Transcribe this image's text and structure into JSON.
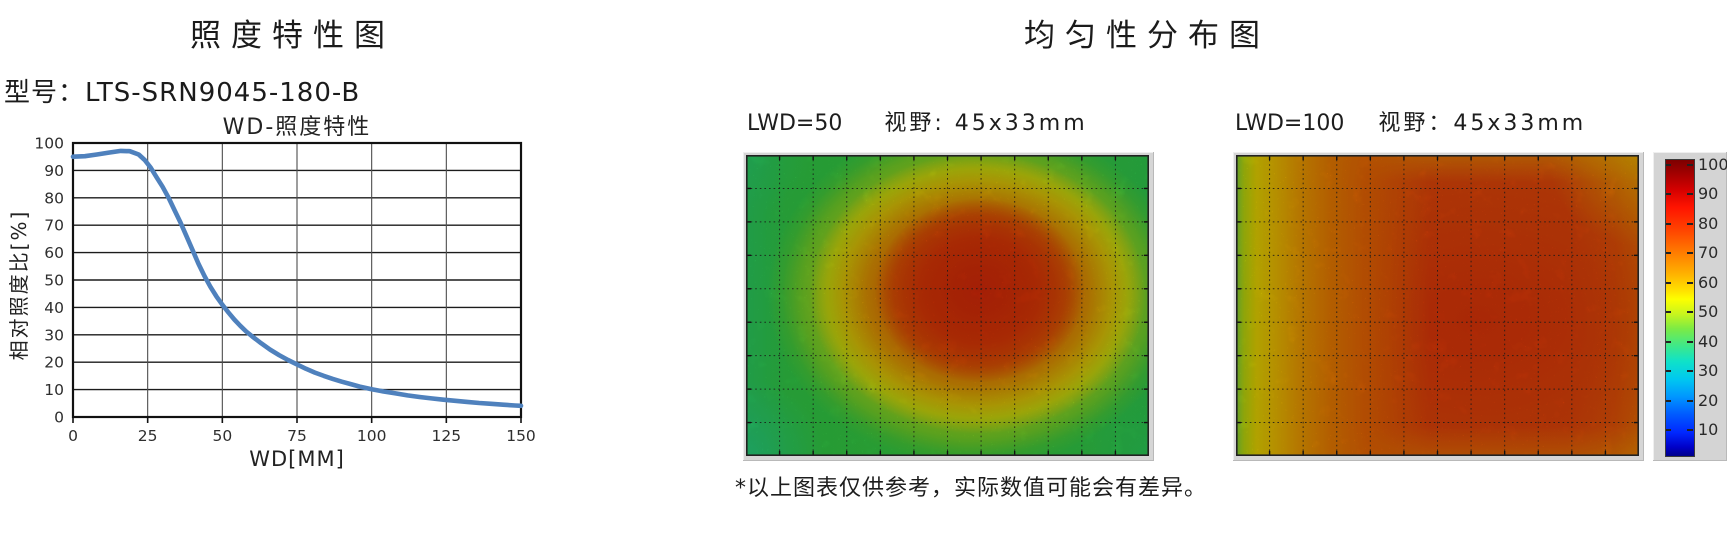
{
  "left_panel": {
    "title": "照度特性图",
    "model_label": "型号：LTS-SRN9045-180-B",
    "chart_title": "WD-照度特性",
    "x_axis_label": "WD[MM]",
    "y_axis_label": "相对照度比[%]"
  },
  "right_panel": {
    "title": "均匀性分布图",
    "heatmap1": {
      "lwd_label": "LWD=50",
      "fov_label": "视野: 45x33mm"
    },
    "heatmap2": {
      "lwd_label": "LWD=100",
      "fov_label": "视野：45x33mm"
    },
    "note": "*以上图表仅供参考，实际数值可能会有差异。"
  },
  "colorbar": {
    "ticks": [
      100,
      90,
      80,
      70,
      60,
      50,
      40,
      30,
      20,
      10
    ],
    "colormap": "jet",
    "panel_color": "#d4d4d4"
  },
  "colors": {
    "curve": "#4f81bd",
    "frame_gray": "#d6d6d6",
    "grid_dark": "#1c1c1c"
  },
  "chart_data": [
    {
      "type": "line",
      "title": "WD-照度特性",
      "xlabel": "WD[MM]",
      "ylabel": "相对照度比[%]",
      "xlim": [
        0,
        150
      ],
      "ylim": [
        0,
        100
      ],
      "x_ticks": [
        0,
        25,
        50,
        75,
        100,
        125,
        150
      ],
      "y_ticks": [
        0,
        10,
        20,
        30,
        40,
        50,
        60,
        70,
        80,
        90,
        100
      ],
      "grid": true,
      "legend": "none",
      "line_color": "#4f81bd",
      "points": [
        [
          0,
          95
        ],
        [
          4,
          95.2
        ],
        [
          8,
          95.8
        ],
        [
          12,
          96.5
        ],
        [
          16,
          97.1
        ],
        [
          19,
          97.0
        ],
        [
          22,
          95.8
        ],
        [
          24,
          93.8
        ],
        [
          26,
          91
        ],
        [
          28,
          87.5
        ],
        [
          30,
          84
        ],
        [
          32,
          80
        ],
        [
          34,
          75.5
        ],
        [
          36,
          71
        ],
        [
          38,
          66
        ],
        [
          40,
          61
        ],
        [
          42,
          56
        ],
        [
          44,
          51.5
        ],
        [
          46,
          47.5
        ],
        [
          48,
          44
        ],
        [
          50,
          41
        ],
        [
          52,
          38.2
        ],
        [
          54,
          35.6
        ],
        [
          56,
          33.3
        ],
        [
          58,
          31.2
        ],
        [
          60,
          29.4
        ],
        [
          63,
          26.9
        ],
        [
          66,
          24.6
        ],
        [
          69,
          22.6
        ],
        [
          72,
          20.8
        ],
        [
          75,
          19.2
        ],
        [
          78,
          17.6
        ],
        [
          81,
          16.2
        ],
        [
          84,
          15
        ],
        [
          87,
          13.9
        ],
        [
          90,
          12.9
        ],
        [
          93,
          12
        ],
        [
          96,
          11.1
        ],
        [
          100,
          10.1
        ],
        [
          104,
          9.3
        ],
        [
          108,
          8.6
        ],
        [
          112,
          7.9
        ],
        [
          116,
          7.3
        ],
        [
          120,
          6.8
        ],
        [
          124,
          6.3
        ],
        [
          128,
          5.9
        ],
        [
          132,
          5.5
        ],
        [
          136,
          5.1
        ],
        [
          140,
          4.8
        ],
        [
          144,
          4.5
        ],
        [
          148,
          4.2
        ],
        [
          150,
          4.1
        ]
      ]
    },
    {
      "type": "heatmap",
      "title": "LWD=50 视野: 45x33mm",
      "lwd": 50,
      "field_of_view_mm": "45x33",
      "grid": {
        "cols": 12,
        "rows": 9
      },
      "value_range": [
        10,
        100
      ],
      "distribution": "central-right red hot-spot (~90-100) surrounded by orange/yellow ring fading to green (~50-60) at edges"
    },
    {
      "type": "heatmap",
      "title": "LWD=100 视野：45x33mm",
      "lwd": 100,
      "field_of_view_mm": "45x33",
      "grid": {
        "cols": 12,
        "rows": 9
      },
      "value_range": [
        10,
        100
      ],
      "distribution": "broad orange-red field (~75-90) with yellow-green strip (~60-65) along left edge"
    }
  ]
}
